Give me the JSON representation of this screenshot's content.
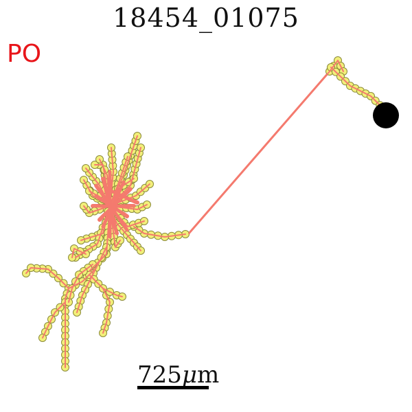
{
  "title": "18454_01075",
  "tag": "PO",
  "scale": {
    "value": "725",
    "unit_prefix": "μ",
    "unit": "m"
  },
  "colors": {
    "dendrite": "#f47a6e",
    "node_fill": "#f2ef7a",
    "node_stroke": "#8a8a3a",
    "soma": "#000000",
    "tag": "#e8151a"
  },
  "icons": {
    "soma": "soma-marker-icon"
  }
}
